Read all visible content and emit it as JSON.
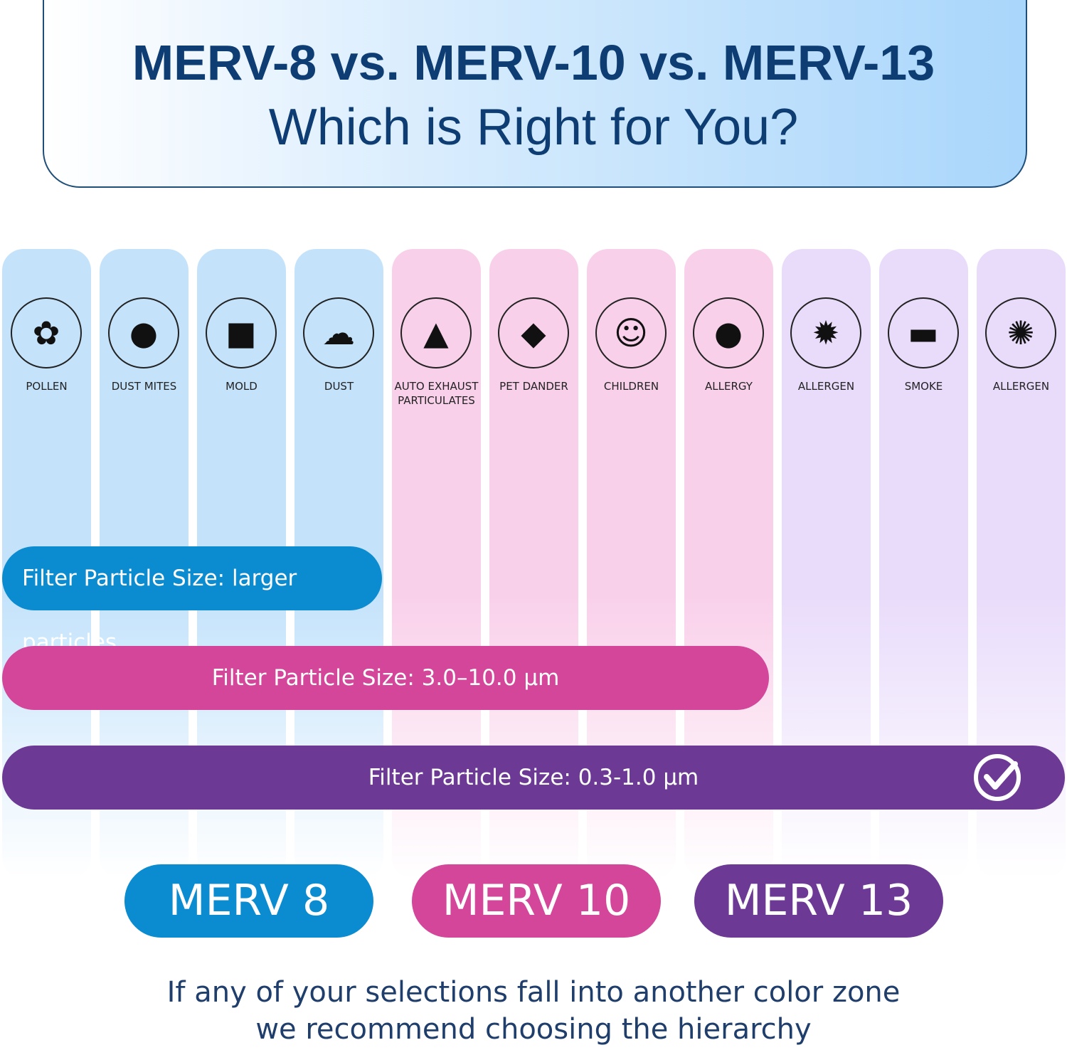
{
  "header": {
    "title": "MERV-8 vs. MERV-10 vs. MERV-13",
    "subtitle": "Which is Right for You?"
  },
  "columns": [
    {
      "label": [
        "POLLEN"
      ],
      "color": "#c4e3fb"
    },
    {
      "label": [
        "DUST MITES"
      ],
      "color": "#c4e3fb"
    },
    {
      "label": [
        "MOLD"
      ],
      "color": "#c4e3fb"
    },
    {
      "label": [
        "DUST"
      ],
      "color": "#c4e3fb"
    },
    {
      "label": [
        "AUTO EXHAUST",
        "PARTICULATES"
      ],
      "color": "#f9d0ea"
    },
    {
      "label": [
        "PET DANDER"
      ],
      "color": "#f9d0ea"
    },
    {
      "label": [
        "CHILDREN"
      ],
      "color": "#f9d0ea"
    },
    {
      "label": [
        "ALLERGY"
      ],
      "color": "#f9d0ea"
    },
    {
      "label": [
        "ALLERGEN"
      ],
      "color": "#e9dcfb"
    },
    {
      "label": [
        "SMOKE"
      ],
      "color": "#e9dcfb"
    },
    {
      "label": [
        "ALLERGEN"
      ],
      "color": "#e9dcfb"
    }
  ],
  "bars": [
    {
      "text": "Filter Particle Size:  larger particles",
      "color": "#0b8bd0"
    },
    {
      "text": "Filter Particle Size: 3.0–10.0 µm",
      "color": "#d3469a"
    },
    {
      "text": "Filter Particle Size: 0.3-1.0 µm",
      "color": "#6c3a94"
    }
  ],
  "ratings": [
    {
      "text": "MERV 8",
      "color": "#0b8bd0"
    },
    {
      "text": "MERV 10",
      "color": "#d3469a"
    },
    {
      "text": "MERV 13",
      "color": "#6c3a94"
    }
  ],
  "footer": [
    "If any of your selections fall into another color zone",
    "we recommend choosing the hierarchy"
  ]
}
